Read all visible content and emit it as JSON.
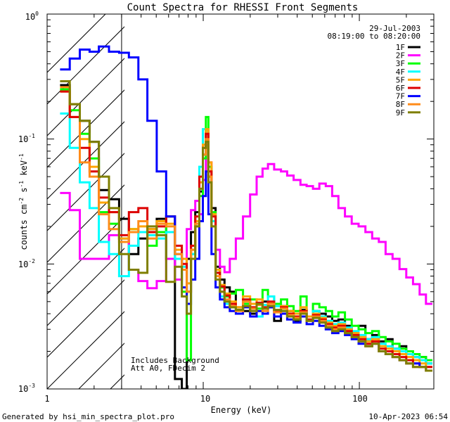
{
  "chart_data": {
    "type": "line",
    "title": "Count Spectra for RHESSI Front Segments",
    "xlabel": "Energy (keV)",
    "ylabel_parts": {
      "base": "counts cm",
      "exp1": "-2",
      "mid1": " s",
      "exp2": "-1",
      "mid2": " keV",
      "exp3": "-1"
    },
    "x_scale": "log",
    "y_scale": "log",
    "xlim": [
      1,
      300
    ],
    "ylim": [
      0.001,
      1.0
    ],
    "x_tick_labels": [
      {
        "value": 1,
        "label": "1"
      },
      {
        "value": 10,
        "label": "10"
      },
      {
        "value": 100,
        "label": "100"
      }
    ],
    "y_tick_labels": [
      {
        "value": 0.001,
        "base": "10",
        "exp": "-3"
      },
      {
        "value": 0.01,
        "base": "10",
        "exp": "-2"
      },
      {
        "value": 0.1,
        "base": "10",
        "exp": "-1"
      },
      {
        "value": 1.0,
        "base": "10",
        "exp": "0"
      }
    ],
    "date": "29-Jul-2003",
    "time_range": "08:19:00 to 08:20:00",
    "annotation_lines": [
      "Includes Background",
      "Att A0, FDecim 2"
    ],
    "excluded_region_max_keV": 3,
    "series": [
      {
        "name": "1F",
        "color": "#000000",
        "energies": [
          1.3,
          1.5,
          1.75,
          2.0,
          2.3,
          2.7,
          3.1,
          3.6,
          4.1,
          4.7,
          5.4,
          6.2,
          7.0,
          7.6,
          8.1,
          8.6,
          9.2,
          9.7,
          10.2,
          10.6,
          11.0,
          11.6,
          12.4,
          13.2,
          14.2,
          15.4,
          17,
          19,
          21,
          23,
          25,
          27,
          30,
          33,
          36,
          40,
          44,
          48,
          53,
          58,
          64,
          70,
          77,
          85,
          94,
          104,
          115,
          127,
          140,
          155,
          172,
          190,
          210,
          232,
          255,
          280
        ],
        "values": [
          0.27,
          0.19,
          0.14,
          0.095,
          0.039,
          0.033,
          0.023,
          0.012,
          0.016,
          0.019,
          0.023,
          0.011,
          0.0012,
          0.001,
          0.011,
          0.018,
          0.026,
          0.038,
          0.075,
          0.12,
          0.05,
          0.028,
          0.0095,
          0.0075,
          0.0065,
          0.006,
          0.0045,
          0.0042,
          0.004,
          0.0048,
          0.005,
          0.0045,
          0.0035,
          0.0046,
          0.0042,
          0.0035,
          0.0043,
          0.0038,
          0.0042,
          0.004,
          0.0038,
          0.0035,
          0.0036,
          0.0032,
          0.0028,
          0.0032,
          0.0025,
          0.0027,
          0.0024,
          0.0025,
          0.0021,
          0.0022,
          0.0019,
          0.0018,
          0.0018,
          0.0016
        ]
      },
      {
        "name": "2F",
        "color": "#ff00ff",
        "energies": [
          1.3,
          1.5,
          1.75,
          2.0,
          2.3,
          2.7,
          3.1,
          3.6,
          4.1,
          4.7,
          5.4,
          6.2,
          7.0,
          7.6,
          8.1,
          8.6,
          9.2,
          9.7,
          10.2,
          10.6,
          11.0,
          11.6,
          12.4,
          13.2,
          14.2,
          15.4,
          17,
          19,
          21,
          23,
          25,
          27,
          30,
          33,
          36,
          40,
          44,
          48,
          53,
          58,
          64,
          70,
          77,
          85,
          94,
          104,
          115,
          127,
          140,
          155,
          172,
          190,
          210,
          232,
          255,
          280
        ],
        "values": [
          0.037,
          0.027,
          0.011,
          0.011,
          0.011,
          0.017,
          0.016,
          0.009,
          0.0073,
          0.0064,
          0.0073,
          0.011,
          0.0075,
          0.011,
          0.019,
          0.027,
          0.032,
          0.025,
          0.047,
          0.09,
          0.065,
          0.022,
          0.013,
          0.0095,
          0.0086,
          0.011,
          0.016,
          0.024,
          0.036,
          0.05,
          0.058,
          0.063,
          0.057,
          0.055,
          0.051,
          0.047,
          0.043,
          0.042,
          0.04,
          0.044,
          0.042,
          0.035,
          0.028,
          0.024,
          0.021,
          0.02,
          0.018,
          0.016,
          0.015,
          0.012,
          0.011,
          0.0091,
          0.0078,
          0.0069,
          0.0057,
          0.0048
        ]
      },
      {
        "name": "3F",
        "color": "#00ff00",
        "energies": [
          1.3,
          1.5,
          1.75,
          2.0,
          2.3,
          2.7,
          3.1,
          3.6,
          4.1,
          4.7,
          5.4,
          6.2,
          7.0,
          7.6,
          8.1,
          8.6,
          9.2,
          9.7,
          10.2,
          10.6,
          11.0,
          11.6,
          12.4,
          13.2,
          14.2,
          15.4,
          17,
          19,
          21,
          23,
          25,
          27,
          30,
          33,
          36,
          40,
          44,
          48,
          53,
          58,
          64,
          70,
          77,
          85,
          94,
          104,
          115,
          127,
          140,
          155,
          172,
          190,
          210,
          232,
          255,
          280
        ],
        "values": [
          0.25,
          0.17,
          0.11,
          0.07,
          0.026,
          0.021,
          0.016,
          0.019,
          0.018,
          0.014,
          0.018,
          0.024,
          0.011,
          0.006,
          0.0017,
          0.012,
          0.02,
          0.035,
          0.07,
          0.15,
          0.06,
          0.026,
          0.0085,
          0.0065,
          0.0055,
          0.0058,
          0.0062,
          0.0048,
          0.0052,
          0.0044,
          0.0062,
          0.0055,
          0.0048,
          0.0052,
          0.0046,
          0.0042,
          0.0055,
          0.0038,
          0.0048,
          0.0045,
          0.0042,
          0.0038,
          0.0041,
          0.0036,
          0.0032,
          0.003,
          0.0028,
          0.0029,
          0.0026,
          0.0024,
          0.0023,
          0.0021,
          0.002,
          0.0019,
          0.0018,
          0.0017
        ]
      },
      {
        "name": "4F",
        "color": "#00ffff",
        "energies": [
          1.3,
          1.5,
          1.75,
          2.0,
          2.3,
          2.7,
          3.1,
          3.6,
          4.1,
          4.7,
          5.4,
          6.2,
          7.0,
          7.6,
          8.1,
          8.6,
          9.2,
          9.7,
          10.2,
          10.6,
          11.0,
          11.6,
          12.4,
          13.2,
          14.2,
          15.4,
          17,
          19,
          21,
          23,
          25,
          27,
          30,
          33,
          36,
          40,
          44,
          48,
          53,
          58,
          64,
          70,
          77,
          85,
          94,
          104,
          115,
          127,
          140,
          155,
          172,
          190,
          210,
          232,
          255,
          280
        ],
        "values": [
          0.16,
          0.085,
          0.045,
          0.028,
          0.015,
          0.012,
          0.008,
          0.014,
          0.018,
          0.017,
          0.016,
          0.018,
          0.011,
          0.0095,
          0.007,
          0.012,
          0.021,
          0.06,
          0.12,
          0.1,
          0.045,
          0.022,
          0.0075,
          0.0055,
          0.0048,
          0.0045,
          0.0042,
          0.0052,
          0.0044,
          0.0038,
          0.0047,
          0.0055,
          0.0046,
          0.0044,
          0.004,
          0.0036,
          0.0042,
          0.0038,
          0.0042,
          0.0038,
          0.0035,
          0.0033,
          0.0034,
          0.0031,
          0.0029,
          0.0027,
          0.0025,
          0.0026,
          0.0023,
          0.0022,
          0.0021,
          0.002,
          0.0019,
          0.0018,
          0.0017,
          0.0016
        ]
      },
      {
        "name": "5F",
        "color": "#ffa500",
        "energies": [
          1.3,
          1.5,
          1.75,
          2.0,
          2.3,
          2.7,
          3.1,
          3.6,
          4.1,
          4.7,
          5.4,
          6.2,
          7.0,
          7.6,
          8.1,
          8.6,
          9.2,
          9.7,
          10.2,
          10.6,
          11.0,
          11.6,
          12.4,
          13.2,
          14.2,
          15.4,
          17,
          19,
          21,
          23,
          25,
          27,
          30,
          33,
          36,
          40,
          44,
          48,
          53,
          58,
          64,
          70,
          77,
          85,
          94,
          104,
          115,
          127,
          140,
          155,
          172,
          190,
          210,
          232,
          255,
          280
        ],
        "values": [
          0.24,
          0.15,
          0.1,
          0.06,
          0.031,
          0.026,
          0.016,
          0.019,
          0.02,
          0.019,
          0.022,
          0.021,
          0.013,
          0.011,
          0.007,
          0.013,
          0.022,
          0.045,
          0.09,
          0.12,
          0.065,
          0.025,
          0.009,
          0.0068,
          0.0058,
          0.005,
          0.0045,
          0.0055,
          0.0048,
          0.0052,
          0.0044,
          0.0049,
          0.0043,
          0.0046,
          0.0042,
          0.004,
          0.0045,
          0.0038,
          0.004,
          0.0037,
          0.0034,
          0.0032,
          0.0033,
          0.003,
          0.0028,
          0.0026,
          0.0024,
          0.0025,
          0.0022,
          0.0021,
          0.002,
          0.0019,
          0.0018,
          0.0017,
          0.0016,
          0.0015
        ]
      },
      {
        "name": "6F",
        "color": "#dd0000",
        "energies": [
          1.3,
          1.5,
          1.75,
          2.0,
          2.3,
          2.7,
          3.1,
          3.6,
          4.1,
          4.7,
          5.4,
          6.2,
          7.0,
          7.6,
          8.1,
          8.6,
          9.2,
          9.7,
          10.2,
          10.6,
          11.0,
          11.6,
          12.4,
          13.2,
          14.2,
          15.4,
          17,
          19,
          21,
          23,
          25,
          27,
          30,
          33,
          36,
          40,
          44,
          48,
          53,
          58,
          64,
          70,
          77,
          85,
          94,
          104,
          115,
          127,
          140,
          155,
          172,
          190,
          210,
          232,
          255,
          280
        ],
        "values": [
          0.24,
          0.15,
          0.085,
          0.055,
          0.034,
          0.026,
          0.017,
          0.026,
          0.028,
          0.018,
          0.02,
          0.024,
          0.014,
          0.01,
          0.006,
          0.014,
          0.024,
          0.05,
          0.085,
          0.11,
          0.055,
          0.024,
          0.0085,
          0.0066,
          0.0056,
          0.0048,
          0.0043,
          0.0052,
          0.0045,
          0.0049,
          0.0045,
          0.005,
          0.0042,
          0.0045,
          0.004,
          0.0038,
          0.0042,
          0.0036,
          0.0039,
          0.0036,
          0.0033,
          0.0031,
          0.0032,
          0.0029,
          0.0027,
          0.0025,
          0.0023,
          0.0024,
          0.0021,
          0.002,
          0.0019,
          0.0018,
          0.0017,
          0.0016,
          0.0015,
          0.0015
        ]
      },
      {
        "name": "7F",
        "color": "#0000ff",
        "energies": [
          1.3,
          1.5,
          1.75,
          2.0,
          2.3,
          2.7,
          3.1,
          3.6,
          4.1,
          4.7,
          5.4,
          6.2,
          7.0,
          7.6,
          8.1,
          8.6,
          9.2,
          9.7,
          10.2,
          10.6,
          11.0,
          11.6,
          12.4,
          13.2,
          14.2,
          15.4,
          17,
          19,
          21,
          23,
          25,
          27,
          30,
          33,
          36,
          40,
          44,
          48,
          53,
          58,
          64,
          70,
          77,
          85,
          94,
          104,
          115,
          127,
          140,
          155,
          172,
          190,
          210,
          232,
          255,
          280
        ],
        "values": [
          0.36,
          0.44,
          0.52,
          0.5,
          0.55,
          0.5,
          0.49,
          0.45,
          0.3,
          0.14,
          0.055,
          0.024,
          0.012,
          0.0065,
          0.0048,
          0.0075,
          0.011,
          0.022,
          0.035,
          0.055,
          0.025,
          0.012,
          0.0065,
          0.0052,
          0.0045,
          0.0042,
          0.004,
          0.0045,
          0.0038,
          0.0042,
          0.004,
          0.0045,
          0.0038,
          0.004,
          0.0036,
          0.0034,
          0.0038,
          0.0033,
          0.0035,
          0.0032,
          0.003,
          0.0028,
          0.0029,
          0.0027,
          0.0025,
          0.0023,
          0.0022,
          0.0023,
          0.002,
          0.0019,
          0.0018,
          0.0017,
          0.0016,
          0.0016,
          0.0015,
          0.0014
        ]
      },
      {
        "name": "8F",
        "color": "#ff8c1a",
        "energies": [
          1.3,
          1.5,
          1.75,
          2.0,
          2.3,
          2.7,
          3.1,
          3.6,
          4.1,
          4.7,
          5.4,
          6.2,
          7.0,
          7.6,
          8.1,
          8.6,
          9.2,
          9.7,
          10.2,
          10.6,
          11.0,
          11.6,
          12.4,
          13.2,
          14.2,
          15.4,
          17,
          19,
          21,
          23,
          25,
          27,
          30,
          33,
          36,
          40,
          44,
          48,
          53,
          58,
          64,
          70,
          77,
          85,
          94,
          104,
          115,
          127,
          140,
          155,
          172,
          190,
          210,
          232,
          255,
          280
        ],
        "values": [
          0.26,
          0.19,
          0.065,
          0.05,
          0.025,
          0.019,
          0.015,
          0.018,
          0.022,
          0.016,
          0.021,
          0.02,
          0.012,
          0.009,
          0.006,
          0.013,
          0.021,
          0.04,
          0.075,
          0.1,
          0.05,
          0.02,
          0.008,
          0.006,
          0.0052,
          0.0046,
          0.0042,
          0.005,
          0.0044,
          0.0047,
          0.0042,
          0.0048,
          0.0041,
          0.0044,
          0.0039,
          0.0037,
          0.0041,
          0.0035,
          0.0038,
          0.0035,
          0.0032,
          0.003,
          0.0031,
          0.0028,
          0.0026,
          0.0024,
          0.0022,
          0.0023,
          0.002,
          0.0019,
          0.0018,
          0.0017,
          0.0016,
          0.0015,
          0.0015,
          0.0014
        ]
      },
      {
        "name": "9F",
        "color": "#7f7f00",
        "energies": [
          1.3,
          1.5,
          1.75,
          2.0,
          2.3,
          2.7,
          3.1,
          3.6,
          4.1,
          4.7,
          5.4,
          6.2,
          7.0,
          7.6,
          8.1,
          8.6,
          9.2,
          9.7,
          10.2,
          10.6,
          11.0,
          11.6,
          12.4,
          13.2,
          14.2,
          15.4,
          17,
          19,
          21,
          23,
          25,
          27,
          30,
          33,
          36,
          40,
          44,
          48,
          53,
          58,
          64,
          70,
          77,
          85,
          94,
          104,
          115,
          127,
          140,
          155,
          172,
          190,
          210,
          232,
          255,
          280
        ],
        "values": [
          0.29,
          0.19,
          0.14,
          0.095,
          0.05,
          0.028,
          0.012,
          0.009,
          0.0085,
          0.02,
          0.017,
          0.0072,
          0.0095,
          0.0055,
          0.004,
          0.011,
          0.02,
          0.04,
          0.085,
          0.095,
          0.045,
          0.02,
          0.0075,
          0.006,
          0.005,
          0.0045,
          0.0043,
          0.0046,
          0.0042,
          0.0048,
          0.0044,
          0.0046,
          0.0043,
          0.0042,
          0.0038,
          0.0036,
          0.004,
          0.0035,
          0.0037,
          0.0034,
          0.0031,
          0.0029,
          0.003,
          0.0028,
          0.0026,
          0.0024,
          0.0022,
          0.0023,
          0.002,
          0.0019,
          0.0018,
          0.0017,
          0.0016,
          0.0015,
          0.0015,
          0.0014
        ]
      }
    ]
  },
  "footer": {
    "left": "Generated by hsi_min_spectra_plot.pro",
    "right": "10-Apr-2023 06:54"
  }
}
